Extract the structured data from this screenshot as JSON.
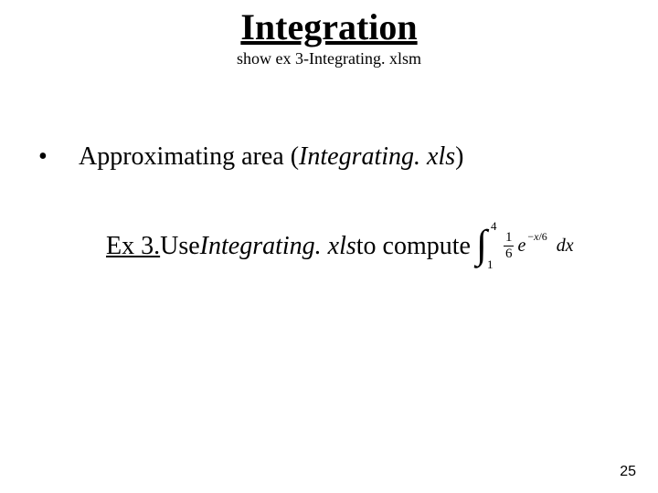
{
  "colors": {
    "background": "#ffffff",
    "text": "#000000"
  },
  "title": {
    "text": "Integration",
    "subtitle": "show ex 3-Integrating. xlsm",
    "title_fontsize": 40,
    "subtitle_fontsize": 18
  },
  "bullet": {
    "marker": "•",
    "prefix": "Approximating area (",
    "emph": "Integrating. xls",
    "suffix": ")",
    "fontsize": 28
  },
  "example": {
    "label": "Ex 3.",
    "lead1": " Use ",
    "emph": "Integrating. xls",
    "lead2": " to compute",
    "fontsize": 28
  },
  "integral": {
    "symbol": "∫",
    "lower": "1",
    "upper": "4",
    "frac_num": "1",
    "frac_den": "6",
    "e_base": "e",
    "e_exp_minus": "−",
    "e_exp_var": "x",
    "e_exp_slash": "/",
    "e_exp_den": "6",
    "dx": "dx"
  },
  "page_number": "25"
}
